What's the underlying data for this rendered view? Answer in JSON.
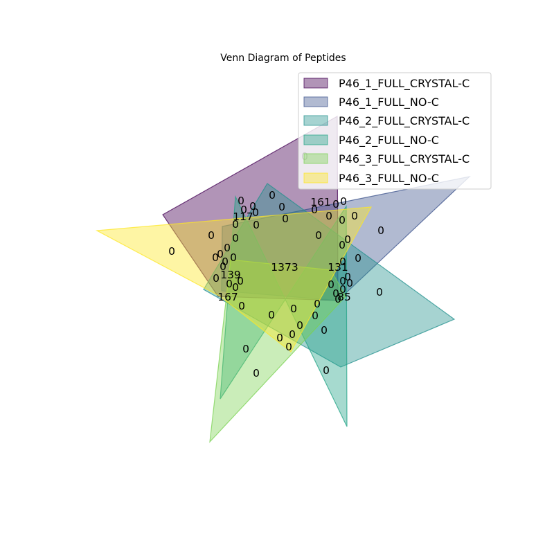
{
  "title": "Venn Diagram of Peptides",
  "sets": [
    {
      "name": "P46_1_FULL_CRYSTAL-C",
      "color": "#440154"
    },
    {
      "name": "P46_1_FULL_NO-C",
      "color": "#3b528b"
    },
    {
      "name": "P46_2_FULL_CRYSTAL-C",
      "color": "#21908d"
    },
    {
      "name": "P46_2_FULL_NO-C",
      "color": "#20a386"
    },
    {
      "name": "P46_3_FULL_CRYSTAL-C",
      "color": "#7ad151"
    },
    {
      "name": "P46_3_FULL_NO-C",
      "color": "#fde725"
    }
  ],
  "region_counts": [
    "0",
    "0",
    "161",
    "0",
    "0",
    "0",
    "0",
    "0",
    "0",
    "0",
    "0",
    "117",
    "0",
    "0",
    "0",
    "0",
    "0",
    "0",
    "0",
    "0",
    "0",
    "0",
    "0",
    "0",
    "0",
    "1373",
    "131",
    "0",
    "0",
    "0",
    "139",
    "0",
    "0",
    "0",
    "0",
    "0",
    "0",
    "0",
    "0",
    "0",
    "85",
    "0",
    "167",
    "0",
    "0",
    "0",
    "0",
    "0",
    "0",
    "0",
    "0",
    "0",
    "0",
    "0",
    "0",
    "0",
    "0",
    "0",
    "0",
    "0",
    "0",
    "0",
    "0",
    "0"
  ]
}
